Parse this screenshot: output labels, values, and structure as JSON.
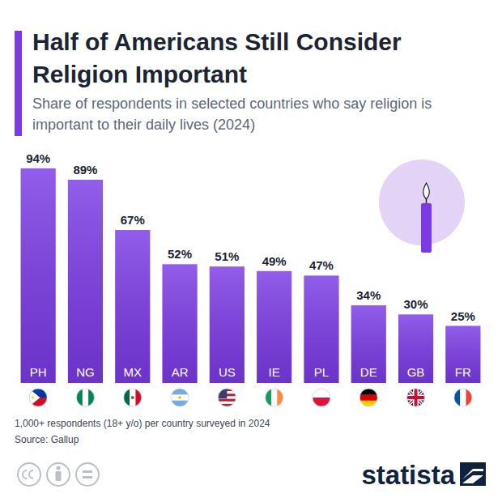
{
  "chart_data": {
    "type": "bar",
    "title": "Half of Americans Still Consider Religion Important",
    "subtitle": "Share of respondents in selected countries who say religion is important to their daily lives (2024)",
    "categories": [
      "PH",
      "NG",
      "MX",
      "AR",
      "US",
      "IE",
      "PL",
      "DE",
      "GB",
      "FR"
    ],
    "values": [
      94,
      89,
      67,
      52,
      51,
      49,
      47,
      34,
      30,
      25
    ],
    "value_labels": [
      "94%",
      "89%",
      "67%",
      "52%",
      "51%",
      "49%",
      "47%",
      "34%",
      "30%",
      "25%"
    ],
    "data_labels": true,
    "color": "#7b3ae6",
    "ylim": [
      0,
      100
    ],
    "grid": false,
    "tick_labels": "x",
    "note": "1,000+ respondents (18+ y/o) per country surveyed in 2024",
    "source": "Source: Gallup",
    "brand": "statista"
  }
}
